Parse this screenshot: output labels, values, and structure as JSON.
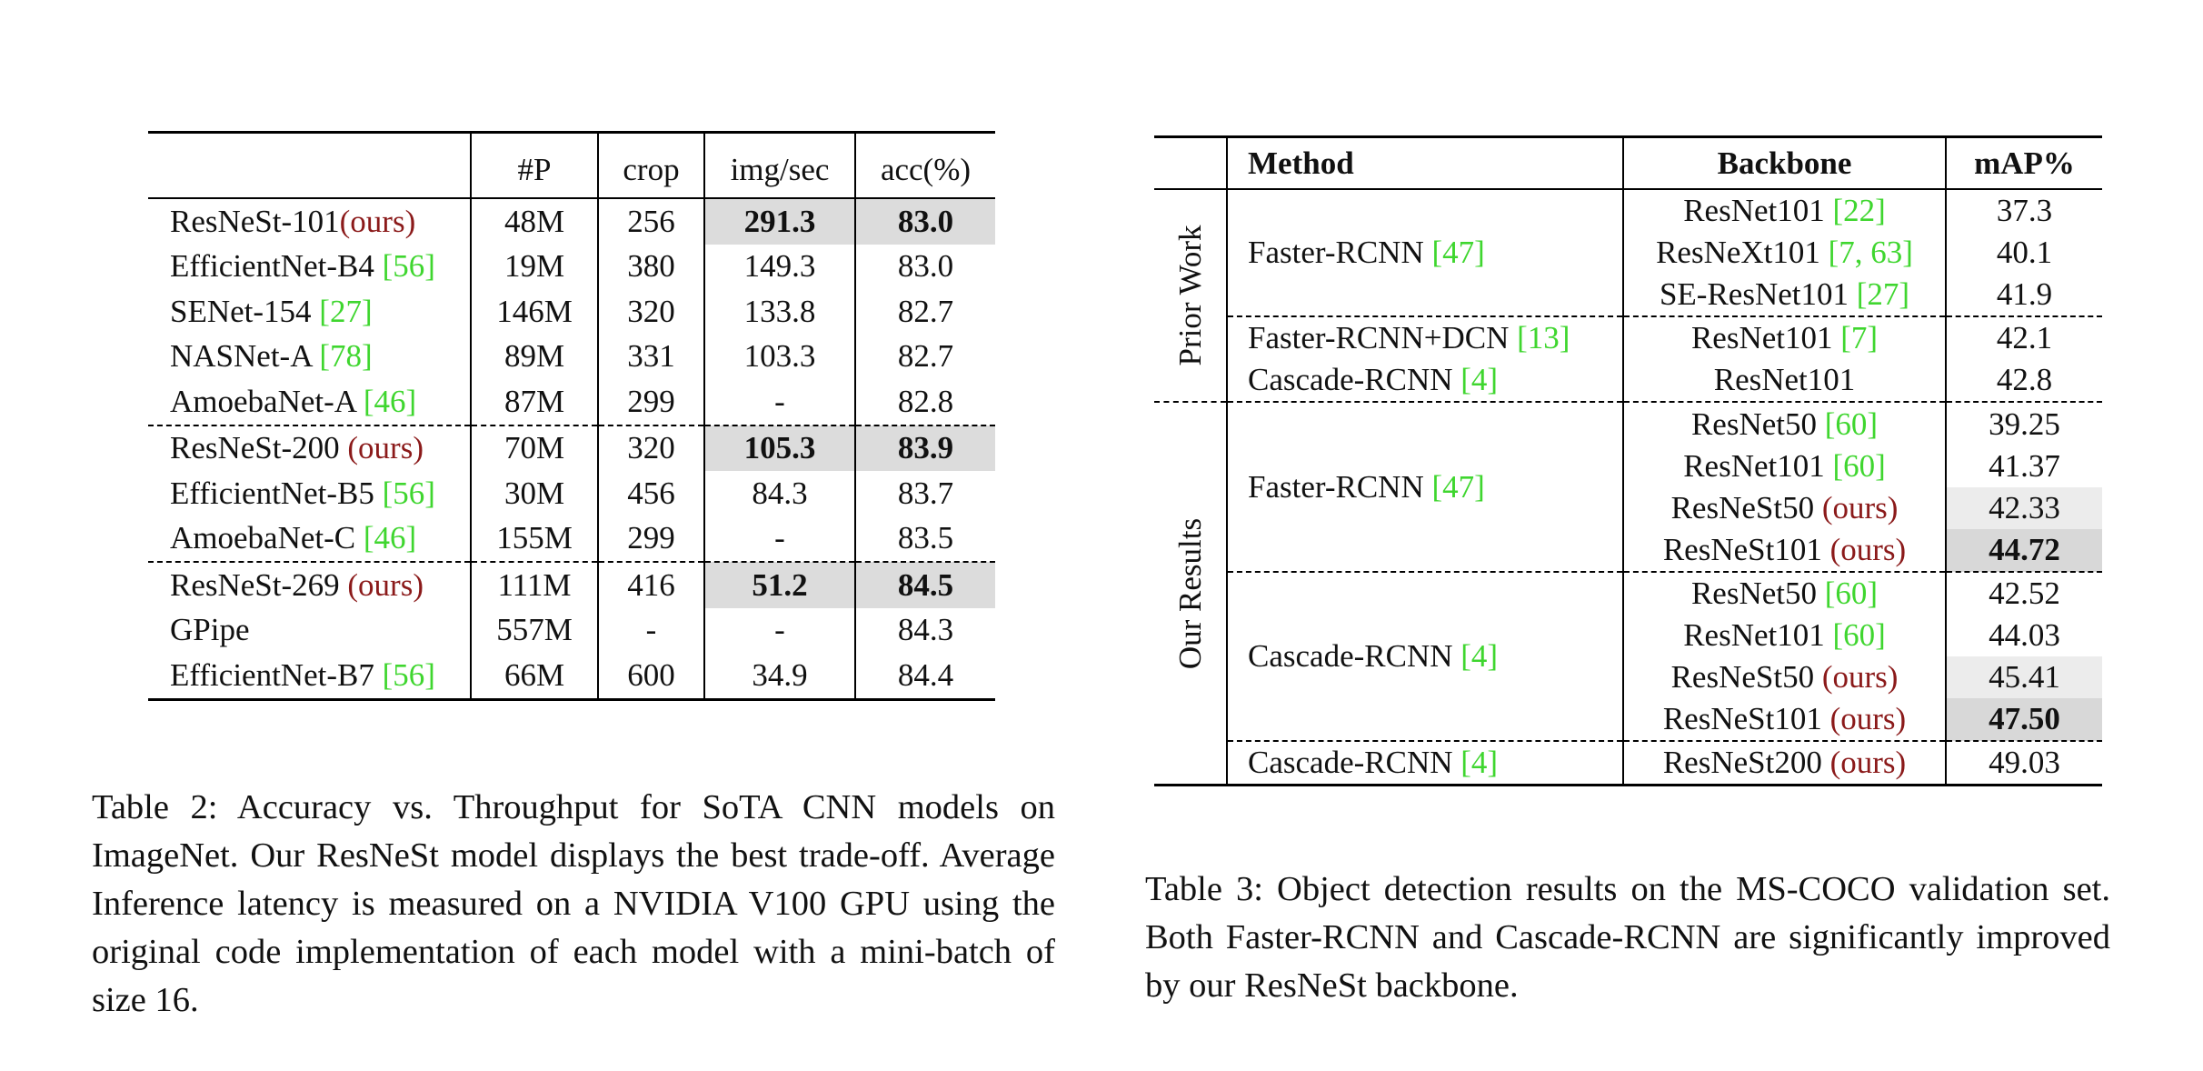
{
  "table2": {
    "headers": [
      "",
      "#P",
      "crop",
      "img/sec",
      "acc(%)"
    ],
    "rows": [
      {
        "name": "ResNeSt-101",
        "ref": "",
        "ours": "(ours)",
        "params": "48M",
        "crop": "256",
        "imgsec": "291.3",
        "acc": "83.0"
      },
      {
        "name": "EfficientNet-B4 ",
        "ref": "[56]",
        "ours": "",
        "params": "19M",
        "crop": "380",
        "imgsec": "149.3",
        "acc": "83.0"
      },
      {
        "name": "SENet-154 ",
        "ref": "[27]",
        "ours": "",
        "params": "146M",
        "crop": "320",
        "imgsec": "133.8",
        "acc": "82.7"
      },
      {
        "name": "NASNet-A ",
        "ref": "[78]",
        "ours": "",
        "params": "89M",
        "crop": "331",
        "imgsec": "103.3",
        "acc": "82.7"
      },
      {
        "name": "AmoebaNet-A ",
        "ref": "[46]",
        "ours": "",
        "params": "87M",
        "crop": "299",
        "imgsec": "-",
        "acc": "82.8"
      },
      {
        "name": "ResNeSt-200 ",
        "ref": "",
        "ours": "(ours)",
        "params": "70M",
        "crop": "320",
        "imgsec": "105.3",
        "acc": "83.9"
      },
      {
        "name": "EfficientNet-B5 ",
        "ref": "[56]",
        "ours": "",
        "params": "30M",
        "crop": "456",
        "imgsec": "84.3",
        "acc": "83.7"
      },
      {
        "name": "AmoebaNet-C ",
        "ref": "[46]",
        "ours": "",
        "params": "155M",
        "crop": "299",
        "imgsec": "-",
        "acc": "83.5"
      },
      {
        "name": "ResNeSt-269 ",
        "ref": "",
        "ours": "(ours)",
        "params": "111M",
        "crop": "416",
        "imgsec": "51.2",
        "acc": "84.5"
      },
      {
        "name": "GPipe",
        "ref": "",
        "ours": "",
        "params": "557M",
        "crop": "-",
        "imgsec": "-",
        "acc": "84.3"
      },
      {
        "name": "EfficientNet-B7 ",
        "ref": "[56]",
        "ours": "",
        "params": "66M",
        "crop": "600",
        "imgsec": "34.9",
        "acc": "84.4"
      }
    ],
    "caption": "Table 2: Accuracy vs. Throughput for SoTA CNN models on ImageNet. Our ResNeSt model displays the best trade-off. Average Inference latency is measured on a NVIDIA V100 GPU using the original code implementation of each model with a mini-batch of size 16."
  },
  "table3": {
    "headers": [
      "",
      "Method",
      "Backbone",
      "mAP%"
    ],
    "groups": [
      "Prior Work",
      "Our Results"
    ],
    "methods": [
      {
        "name": "Faster-RCNN ",
        "ref": "[47]"
      },
      {
        "name": "Faster-RCNN+DCN ",
        "ref": "[13]"
      },
      {
        "name": "Cascade-RCNN ",
        "ref": "[4]"
      },
      {
        "name": "Faster-RCNN ",
        "ref": "[47]"
      },
      {
        "name": "Cascade-RCNN ",
        "ref": "[4]"
      },
      {
        "name": "Cascade-RCNN ",
        "ref": "[4]"
      }
    ],
    "rows": [
      {
        "backbone": "ResNet101 ",
        "ref": "[22]",
        "ours": "",
        "map": "37.3"
      },
      {
        "backbone": "ResNeXt101 ",
        "ref": "[7, 63]",
        "ours": "",
        "map": "40.1"
      },
      {
        "backbone": "SE-ResNet101 ",
        "ref": "[27]",
        "ours": "",
        "map": "41.9"
      },
      {
        "backbone": "ResNet101 ",
        "ref": "[7]",
        "ours": "",
        "map": "42.1"
      },
      {
        "backbone": "ResNet101",
        "ref": "",
        "ours": "",
        "map": "42.8"
      },
      {
        "backbone": "ResNet50 ",
        "ref": "[60]",
        "ours": "",
        "map": "39.25"
      },
      {
        "backbone": "ResNet101 ",
        "ref": "[60]",
        "ours": "",
        "map": "41.37"
      },
      {
        "backbone": "ResNeSt50 ",
        "ref": "",
        "ours": "(ours)",
        "map": "42.33"
      },
      {
        "backbone": "ResNeSt101 ",
        "ref": "",
        "ours": "(ours)",
        "map": "44.72"
      },
      {
        "backbone": "ResNet50 ",
        "ref": "[60]",
        "ours": "",
        "map": "42.52"
      },
      {
        "backbone": "ResNet101 ",
        "ref": "[60]",
        "ours": "",
        "map": "44.03"
      },
      {
        "backbone": "ResNeSt50 ",
        "ref": "",
        "ours": "(ours)",
        "map": "45.41"
      },
      {
        "backbone": "ResNeSt101 ",
        "ref": "",
        "ours": "(ours)",
        "map": "47.50"
      },
      {
        "backbone": "ResNeSt200 ",
        "ref": "",
        "ours": "(ours)",
        "map": "49.03"
      }
    ],
    "caption": "Table 3: Object detection results on the MS-COCO validation set. Both Faster-RCNN and Cascade-RCNN are significantly improved by our ResNeSt backbone."
  }
}
